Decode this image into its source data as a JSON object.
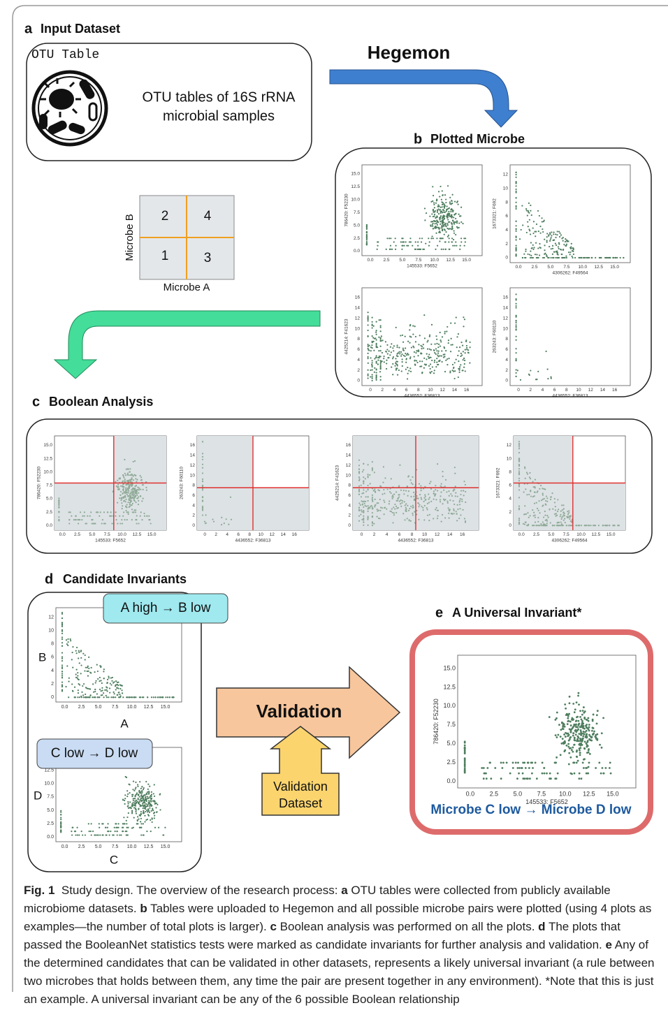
{
  "panel_a": {
    "letter": "a",
    "title": "Input Dataset",
    "table_label": "OTU Table",
    "description": [
      "OTU tables of 16S rRNA",
      "microbial samples"
    ]
  },
  "tool": "Hegemon",
  "quadrant": {
    "cells": [
      "2",
      "4",
      "1",
      "3"
    ],
    "y_label": "Microbe B",
    "x_label": "Microbe A"
  },
  "panel_b": {
    "letter": "b",
    "title": "Plotted Microbe"
  },
  "panel_c": {
    "letter": "c",
    "title": "Boolean Analysis"
  },
  "panel_d": {
    "letter": "d",
    "title": "Candidate Invariants",
    "rules": [
      "A high → B low",
      "C low → D low"
    ],
    "axis_letters": [
      "B",
      "A",
      "D",
      "C"
    ]
  },
  "validation": {
    "label": "Validation",
    "dataset": [
      "Validation",
      "Dataset"
    ]
  },
  "panel_e": {
    "letter": "e",
    "title": "A Universal Invariant*",
    "rule": "Microbe C low → Microbe D low"
  },
  "plots": [
    {
      "xlabel": "145533: F5652",
      "ylabel": "786420: F52230",
      "xticks": [
        "0.0",
        "2.5",
        "5.0",
        "7.5",
        "10.0",
        "12.5",
        "15.0"
      ],
      "yticks": [
        "0.0",
        "2.5",
        "5.0",
        "7.5",
        "10.0",
        "12.5",
        "15.0"
      ]
    },
    {
      "xlabel": "4306262: F49564",
      "ylabel": "1673321: F692",
      "xticks": [
        "0.0",
        "2.5",
        "5.0",
        "7.5",
        "10.0",
        "12.5",
        "15.0"
      ],
      "yticks": [
        "0",
        "2",
        "4",
        "6",
        "8",
        "10",
        "12"
      ]
    },
    {
      "xlabel": "4436552: F36813",
      "ylabel": "4425214: F41623",
      "xticks": [
        "0",
        "2",
        "4",
        "6",
        "8",
        "10",
        "12",
        "14",
        "16"
      ],
      "yticks": [
        "0",
        "2",
        "4",
        "6",
        "8",
        "10",
        "12",
        "14",
        "16"
      ]
    },
    {
      "xlabel": "4436552: F36813",
      "ylabel": "263243: F60110",
      "xticks": [
        "0",
        "2",
        "4",
        "6",
        "8",
        "10",
        "12",
        "14",
        "16"
      ],
      "yticks": [
        "0",
        "2",
        "4",
        "6",
        "8",
        "10",
        "12",
        "14",
        "16"
      ]
    }
  ],
  "caption": {
    "label": "Fig. 1",
    "intro": "Study design. The overview of the research process:",
    "items": [
      {
        "key": "a",
        "text": "OTU tables were collected from publicly available microbiome datasets."
      },
      {
        "key": "b",
        "text": "Tables were uploaded to Hegemon and all possible microbe pairs were plotted (using 4 plots as examples—the number of total plots is larger)."
      },
      {
        "key": "c",
        "text": "Boolean analysis was performed on all the plots."
      },
      {
        "key": "d",
        "text": "The plots that passed the BooleanNet statistics tests were marked as candidate invariants for further analysis and validation."
      },
      {
        "key": "e",
        "text": "Any of the determined candidates that can be validated in other datasets, represents a likely universal invariant (a rule between two microbes that holds between them, any time the pair are present together in any environment). *Note that this is just an example. A universal invariant can be any of the 6 possible Boolean relationship"
      }
    ]
  }
}
